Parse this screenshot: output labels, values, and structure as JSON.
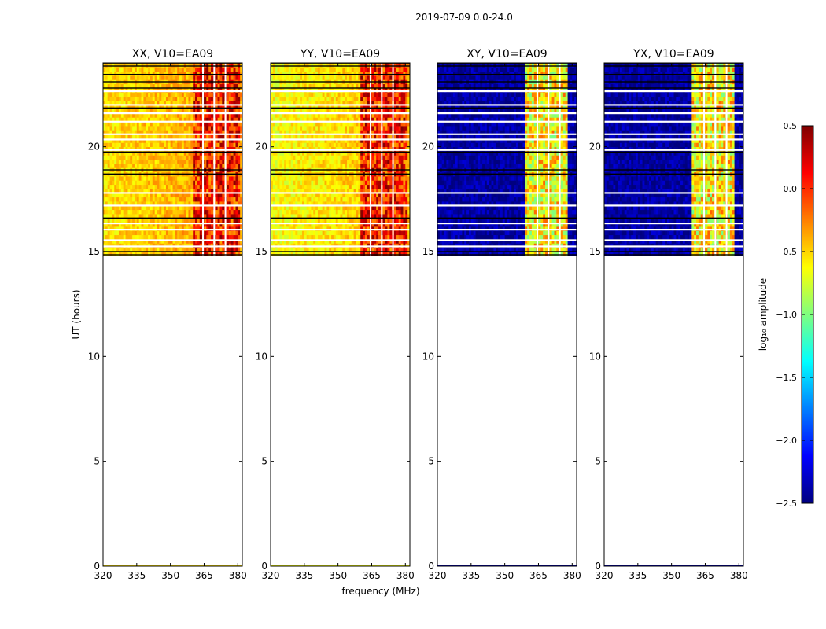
{
  "figure": {
    "suptitle": "2019-07-09 0.0-24.0",
    "xlabel": "frequency (MHz)",
    "ylabel": "UT (hours)"
  },
  "colorbar": {
    "label": "log₁₀ amplitude",
    "range": [
      -2.5,
      0.5
    ],
    "ticks": [
      "0.5",
      "0.0",
      "−0.5",
      "−1.0",
      "−1.5",
      "−2.0",
      "−2.5"
    ],
    "tick_values": [
      0.5,
      0.0,
      -0.5,
      -1.0,
      -1.5,
      -2.0,
      -2.5
    ],
    "colormap": "jet",
    "colors": [
      "#00007f",
      "#0000ff",
      "#007fff",
      "#00ffff",
      "#7fff7f",
      "#ffff00",
      "#ff7f00",
      "#ff0000",
      "#7f0000"
    ]
  },
  "chart_data": [
    {
      "type": "heatmap",
      "title": "XX, V10=EA09",
      "xlim": [
        320,
        382
      ],
      "ylim": [
        0,
        24
      ],
      "xticks": [
        320,
        335,
        350,
        365,
        380
      ],
      "yticks": [
        0,
        5,
        10,
        15,
        20
      ],
      "data_time_range": [
        14.8,
        24
      ],
      "baseline_value": -0.55,
      "band_value": 0.05,
      "rfi_band_mhz": [
        360.5,
        380.5
      ],
      "blank_channels_mhz": [
        364.5,
        369.5,
        374.5
      ]
    },
    {
      "type": "heatmap",
      "title": "YY, V10=EA09",
      "xlim": [
        320,
        382
      ],
      "ylim": [
        0,
        24
      ],
      "xticks": [
        320,
        335,
        350,
        365,
        380
      ],
      "yticks": [
        0,
        5,
        10,
        15,
        20
      ],
      "data_time_range": [
        14.8,
        24
      ],
      "baseline_value": -0.65,
      "band_value": 0.05,
      "rfi_band_mhz": [
        360.5,
        380.5
      ],
      "blank_channels_mhz": [
        364.5,
        369.5,
        374.5
      ]
    },
    {
      "type": "heatmap",
      "title": "XY, V10=EA09",
      "xlim": [
        320,
        382
      ],
      "ylim": [
        0,
        24
      ],
      "xticks": [
        320,
        335,
        350,
        365,
        380
      ],
      "yticks": [
        0,
        5,
        10,
        15,
        20
      ],
      "data_time_range": [
        14.8,
        24
      ],
      "baseline_value": -2.4,
      "band_value": -0.6,
      "rfi_band_mhz": [
        359.5,
        377.5
      ],
      "blank_channels_mhz": [
        364.5,
        369.5,
        374.5
      ]
    },
    {
      "type": "heatmap",
      "title": "YX, V10=EA09",
      "xlim": [
        320,
        382
      ],
      "ylim": [
        0,
        24
      ],
      "xticks": [
        320,
        335,
        350,
        365,
        380
      ],
      "yticks": [
        0,
        5,
        10,
        15,
        20
      ],
      "data_time_range": [
        14.8,
        24
      ],
      "baseline_value": -2.4,
      "band_value": -0.6,
      "rfi_band_mhz": [
        359.5,
        377.5
      ],
      "blank_channels_mhz": [
        364.5,
        369.5,
        374.5
      ]
    }
  ]
}
